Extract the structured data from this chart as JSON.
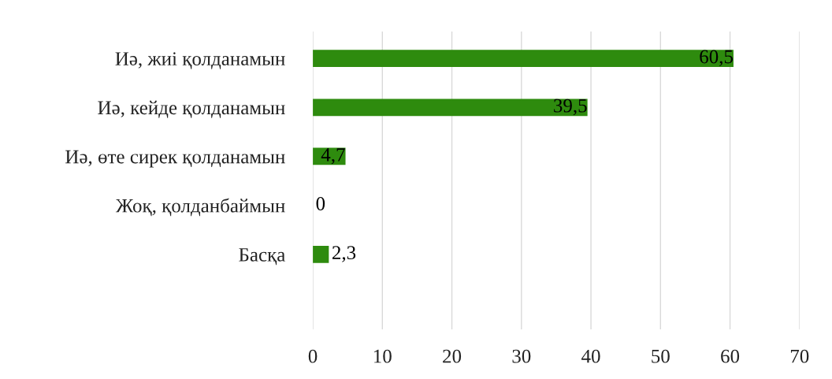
{
  "chart_data": {
    "type": "bar",
    "orientation": "horizontal",
    "categories": [
      "Иә, жиі қолданамын",
      "Иә, кейде қолданамын",
      "Иә, өте сирек қолданамын",
      "Жоқ, қолданбаймын",
      "Басқа"
    ],
    "values": [
      60.5,
      39.5,
      4.7,
      0,
      2.3
    ],
    "value_labels": [
      "60,5",
      "39,5",
      "4,7",
      "0",
      "2,3"
    ],
    "color": "#2e8b0e",
    "xlim": [
      0,
      70
    ],
    "xticks": [
      0,
      10,
      20,
      30,
      40,
      50,
      60,
      70
    ],
    "grid": "x"
  }
}
